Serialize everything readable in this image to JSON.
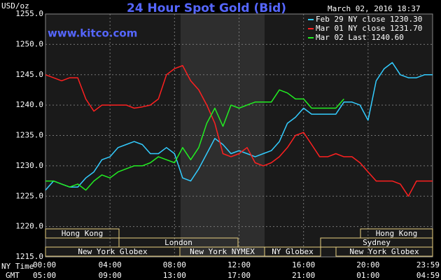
{
  "chart_data": {
    "type": "line",
    "title": "24 Hour Spot Gold (Bid)",
    "subtitle": "www.kitco.com",
    "timestamp": "March 02, 2016 18:37",
    "y_label": "USD/oz",
    "x_label": "NY Time",
    "x2_label": "GMT",
    "x": [
      0,
      0.5,
      1,
      1.5,
      2,
      2.5,
      3,
      3.5,
      4,
      4.5,
      5,
      5.5,
      6,
      6.5,
      7,
      7.5,
      8,
      8.5,
      9,
      9.5,
      10,
      10.5,
      11,
      11.5,
      12,
      12.5,
      13,
      13.5,
      14,
      14.5,
      15,
      15.5,
      16,
      16.5,
      17,
      17.5,
      18,
      18.5,
      19,
      19.5,
      20,
      20.5,
      21,
      21.5,
      22,
      22.5,
      23,
      23.5,
      24
    ],
    "xlim": [
      0,
      24
    ],
    "xticks": [
      {
        "value": 0,
        "label": "00:00"
      },
      {
        "value": 4,
        "label": "04:00"
      },
      {
        "value": 8,
        "label": "08:00"
      },
      {
        "value": 12,
        "label": "12:00"
      },
      {
        "value": 16,
        "label": "16:00"
      },
      {
        "value": 20,
        "label": "20:00"
      },
      {
        "value": 24,
        "label": "23:59"
      }
    ],
    "x2ticks": [
      "05:00",
      "09:00",
      "13:00",
      "17:00",
      "21:00",
      "01:00",
      "04:59"
    ],
    "ylim": [
      1215,
      1255
    ],
    "yticks": [
      {
        "value": 1215,
        "label": "1215.0"
      },
      {
        "value": 1220,
        "label": "1220.0"
      },
      {
        "value": 1225,
        "label": "1225.0"
      },
      {
        "value": 1230,
        "label": "1230.0"
      },
      {
        "value": 1235,
        "label": "1235.0"
      },
      {
        "value": 1240,
        "label": "1240.0"
      },
      {
        "value": 1245,
        "label": "1245.0"
      },
      {
        "value": 1250,
        "label": "1250.0"
      },
      {
        "value": 1255,
        "label": "1255.0"
      }
    ],
    "grid": true,
    "series": [
      {
        "name": "Feb 29 NY close 1230.30",
        "color": "#33ccff",
        "values": [
          1226,
          1227.5,
          1227,
          1226.5,
          1226.5,
          1228,
          1229,
          1231,
          1231.5,
          1233,
          1233.5,
          1234,
          1233.5,
          1232,
          1232,
          1233,
          1232,
          1228,
          1227.5,
          1229.5,
          1232,
          1234.5,
          1233.5,
          1232,
          1232.5,
          1232,
          1231.5,
          1232,
          1232.5,
          1234,
          1237,
          1238,
          1239.5,
          1238.5,
          1238.5,
          1238.5,
          1238.5,
          1240.5,
          1240.5,
          1240,
          1237.5,
          1244,
          1246,
          1247,
          1245,
          1244.5,
          1244.5,
          1245,
          1245
        ]
      },
      {
        "name": "Mar 01 NY close 1231.70",
        "color": "#ff2020",
        "values": [
          1245,
          1244.5,
          1244,
          1244.5,
          1244.5,
          1241,
          1239,
          1240,
          1240,
          1240,
          1240,
          1239.5,
          1239.7,
          1240,
          1241,
          1245,
          1246,
          1246.5,
          1244,
          1242.5,
          1240,
          1237,
          1232,
          1231.5,
          1232,
          1233,
          1230.5,
          1230,
          1230.5,
          1231.5,
          1233,
          1235,
          1235.5,
          1233.5,
          1231.5,
          1231.5,
          1232,
          1231.5,
          1231.5,
          1230.5,
          1229,
          1227.5,
          1227.5,
          1227.5,
          1227,
          1225,
          1227.5,
          1227.5,
          1227.5
        ]
      },
      {
        "name": "Mar 02 Last 1240.60",
        "color": "#22ee22",
        "values": [
          1227.5,
          1227.5,
          1227,
          1226.5,
          1227,
          1226,
          1227.5,
          1228.5,
          1228,
          1229,
          1229.5,
          1230,
          1230,
          1230.5,
          1231.5,
          1231,
          1230.5,
          1233,
          1231,
          1233,
          1237,
          1239.5,
          1236.5,
          1240,
          1239.5,
          1240,
          1240.5,
          1240.5,
          1240.5,
          1242.5,
          1242,
          1241,
          1241,
          1239.5,
          1239.5,
          1239.5,
          1239.5,
          1241,
          null,
          null,
          null,
          null,
          null,
          null,
          null,
          null,
          null,
          null,
          null
        ]
      }
    ],
    "sessions": [
      "Hong Kong",
      "London",
      "New York Globex",
      "New York NYMEX",
      "NY Globex",
      "Sydney",
      "Hong Kong",
      "New York Globex"
    ]
  }
}
